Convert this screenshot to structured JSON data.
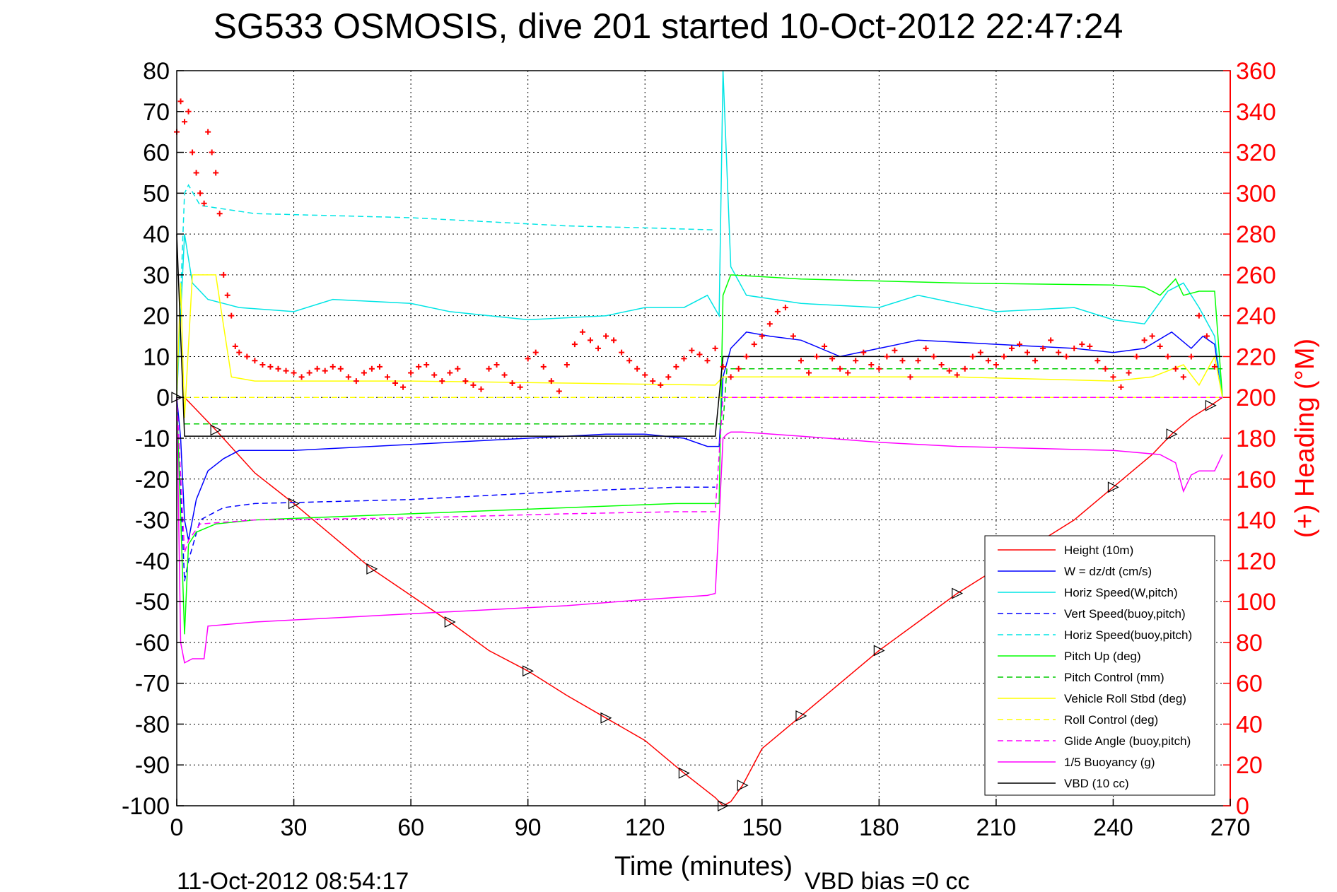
{
  "chart_data": {
    "type": "line",
    "title": "SG533 OSMOSIS, dive 201 started 10-Oct-2012 22:47:24",
    "xlabel": "Time (minutes)",
    "ylabel": "",
    "y2label": "(+) Heading (°M)",
    "xlim": [
      0,
      270
    ],
    "ylim": [
      -100,
      80
    ],
    "y2lim": [
      0,
      360
    ],
    "xticks": [
      "0",
      "30",
      "60",
      "90",
      "120",
      "150",
      "180",
      "210",
      "240",
      "270"
    ],
    "yticks": [
      "80",
      "70",
      "60",
      "50",
      "40",
      "30",
      "20",
      "10",
      "0",
      "-10",
      "-20",
      "-30",
      "-40",
      "-50",
      "-60",
      "-70",
      "-80",
      "-90",
      "-100"
    ],
    "y2ticks": [
      "360",
      "340",
      "320",
      "300",
      "280",
      "260",
      "240",
      "220",
      "200",
      "180",
      "160",
      "140",
      "120",
      "100",
      "80",
      "60",
      "40",
      "20",
      "0"
    ],
    "grid": true,
    "legend_position": "bottom-right",
    "footer_left": "11-Oct-2012 08:54:17",
    "footer_right": "VBD bias =0 cc",
    "series": [
      {
        "name": "Height (10m)",
        "color": "#ff0000",
        "style": "solid",
        "x": [
          0,
          2,
          10,
          20,
          30,
          40,
          50,
          60,
          70,
          80,
          90,
          100,
          110,
          120,
          130,
          138,
          140,
          142,
          145,
          150,
          160,
          170,
          180,
          190,
          200,
          210,
          220,
          230,
          240,
          250,
          255,
          260,
          265,
          268
        ],
        "y": [
          0,
          0,
          -8,
          -18.5,
          -26,
          -34,
          -42,
          -48.5,
          -55,
          -62,
          -67,
          -73,
          -78.5,
          -84,
          -92,
          -98,
          -100,
          -99,
          -95,
          -86,
          -78,
          -70,
          -62,
          -55,
          -48,
          -42,
          -36,
          -30,
          -22,
          -14,
          -9,
          -5,
          -2,
          0
        ]
      },
      {
        "name": "W = dz/dt (cm/s)",
        "color": "#0000ff",
        "style": "solid",
        "x": [
          0,
          1,
          2,
          3,
          5,
          8,
          12,
          16,
          30,
          50,
          70,
          90,
          110,
          120,
          130,
          136,
          139,
          140,
          142,
          146,
          152,
          160,
          170,
          180,
          190,
          210,
          230,
          240,
          248,
          255,
          260,
          263,
          266,
          268
        ],
        "y": [
          0,
          -10,
          -30,
          -35,
          -25,
          -18,
          -15,
          -13,
          -13,
          -12,
          -11,
          -10,
          -9,
          -9,
          -10,
          -12,
          -12,
          5,
          12,
          16,
          15,
          14,
          10,
          12,
          14,
          13,
          12,
          11,
          12,
          16,
          12,
          15,
          13,
          0
        ]
      },
      {
        "name": "Horiz Speed(W,pitch)",
        "color": "#00e5e5",
        "style": "solid",
        "x": [
          0,
          2,
          4,
          8,
          12,
          16,
          30,
          40,
          60,
          70,
          90,
          110,
          120,
          130,
          136,
          139,
          140,
          142,
          146,
          160,
          180,
          190,
          210,
          230,
          240,
          248,
          254,
          258,
          262,
          266,
          268
        ],
        "y": [
          0,
          40,
          28,
          24,
          23,
          22,
          21,
          24,
          23,
          21,
          19,
          20,
          22,
          22,
          25,
          20,
          80,
          32,
          25,
          23,
          22,
          25,
          21,
          22,
          19,
          18,
          26,
          28,
          22,
          15,
          0
        ]
      },
      {
        "name": "Vert Speed(buoy,pitch)",
        "color": "#0000ff",
        "style": "dashed",
        "x": [
          0,
          2,
          3,
          6,
          12,
          20,
          60,
          100,
          128,
          138
        ],
        "y": [
          0,
          -45,
          -40,
          -30,
          -27,
          -26,
          -25,
          -23,
          -22,
          -22
        ]
      },
      {
        "name": "Horiz Speed(buoy,pitch)",
        "color": "#00e5e5",
        "style": "dashed",
        "x": [
          0,
          2,
          3,
          6,
          20,
          40,
          60,
          80,
          100,
          120,
          138
        ],
        "y": [
          0,
          50,
          52,
          47,
          45,
          44.5,
          44,
          43,
          42,
          41.5,
          41
        ]
      },
      {
        "name": "Pitch Up (deg)",
        "color": "#00ff00",
        "style": "solid",
        "x": [
          0,
          2,
          3,
          5,
          10,
          20,
          60,
          100,
          128,
          138,
          139,
          140,
          142,
          160,
          200,
          240,
          248,
          252,
          256,
          258,
          262,
          266,
          268
        ],
        "y": [
          0,
          -58,
          -36,
          -33,
          -31,
          -30,
          -28.5,
          -27,
          -26,
          -26,
          -26,
          25,
          30,
          29,
          28,
          27.5,
          27,
          25,
          29,
          25,
          26,
          26,
          0
        ]
      },
      {
        "name": "Pitch Control (mm)",
        "color": "#00cc00",
        "style": "dashed",
        "x": [
          2,
          140,
          141,
          268
        ],
        "y": [
          -6.5,
          -6.5,
          7,
          7
        ]
      },
      {
        "name": "Vehicle Roll Stbd (deg)",
        "color": "#ffff00",
        "style": "solid",
        "x": [
          0,
          1,
          2,
          4,
          10,
          14,
          20,
          60,
          100,
          138,
          140,
          150,
          200,
          240,
          250,
          258,
          262,
          266,
          268
        ],
        "y": [
          0,
          28,
          -5,
          30,
          30,
          5,
          4,
          4,
          3.5,
          3,
          5,
          5,
          5,
          4,
          5,
          8,
          3,
          10,
          0
        ]
      },
      {
        "name": "Roll Control (deg)",
        "color": "#ffff00",
        "style": "dashed",
        "x": [
          2,
          140,
          142,
          268
        ],
        "y": [
          0,
          0,
          0,
          0
        ]
      },
      {
        "name": "Glide Angle (buoy,pitch)",
        "color": "#ff00ff",
        "style": "dashed",
        "x": [
          0,
          2,
          3,
          6,
          20,
          60,
          100,
          128,
          138,
          140,
          142,
          268
        ],
        "y": [
          0,
          -38,
          -35,
          -31,
          -30,
          -29.5,
          -28.5,
          -28,
          -28,
          0,
          0,
          0
        ]
      },
      {
        "name": "1/5 Buoyancy (g)",
        "color": "#ff00ff",
        "style": "solid",
        "x": [
          0,
          1,
          2,
          4,
          7,
          8,
          20,
          60,
          100,
          120,
          136,
          138,
          139,
          140,
          141,
          142,
          145,
          160,
          180,
          200,
          220,
          240,
          252,
          256,
          258,
          260,
          262,
          266,
          268
        ],
        "y": [
          0,
          -60,
          -65,
          -64,
          -64,
          -56,
          -55,
          -53,
          -51,
          -49.5,
          -48.5,
          -48,
          -30,
          -10,
          -9,
          -8.5,
          -8.5,
          -9.5,
          -11,
          -12,
          -12.5,
          -13,
          -14,
          -16,
          -23,
          -19,
          -18,
          -18,
          -14
        ]
      },
      {
        "name": "VBD (10 cc)",
        "color": "#000000",
        "style": "solid",
        "x": [
          0,
          2,
          138,
          140,
          268
        ],
        "y": [
          40,
          -9.5,
          -9.5,
          10,
          10
        ]
      },
      {
        "name": "Heading",
        "color": "#ff0000",
        "style": "markers",
        "axis": "right",
        "x": [
          0,
          1,
          2,
          3,
          4,
          5,
          6,
          7,
          8,
          9,
          10,
          11,
          12,
          13,
          14,
          15,
          16,
          18,
          20,
          22,
          24,
          26,
          28,
          30,
          32,
          34,
          36,
          38,
          40,
          42,
          44,
          46,
          48,
          50,
          52,
          54,
          56,
          58,
          60,
          62,
          64,
          66,
          68,
          70,
          72,
          74,
          76,
          78,
          80,
          82,
          84,
          86,
          88,
          90,
          92,
          94,
          96,
          98,
          100,
          102,
          104,
          106,
          108,
          110,
          112,
          114,
          116,
          118,
          120,
          122,
          124,
          126,
          128,
          130,
          132,
          134,
          136,
          138,
          140,
          142,
          144,
          146,
          148,
          150,
          152,
          154,
          156,
          158,
          160,
          162,
          164,
          166,
          168,
          170,
          172,
          174,
          176,
          178,
          180,
          182,
          184,
          186,
          188,
          190,
          192,
          194,
          196,
          198,
          200,
          202,
          204,
          206,
          208,
          210,
          212,
          214,
          216,
          218,
          220,
          222,
          224,
          226,
          228,
          230,
          232,
          234,
          236,
          238,
          240,
          242,
          244,
          246,
          248,
          250,
          252,
          254,
          256,
          258,
          260,
          262,
          264,
          266
        ],
        "y": [
          330,
          345,
          335,
          340,
          320,
          310,
          300,
          295,
          330,
          320,
          310,
          290,
          260,
          250,
          240,
          225,
          222,
          220,
          218,
          216,
          215,
          214,
          213,
          212,
          210,
          212,
          214,
          213,
          215,
          214,
          210,
          208,
          212,
          214,
          215,
          210,
          207,
          205,
          212,
          215,
          216,
          211,
          208,
          212,
          214,
          208,
          206,
          204,
          214,
          216,
          211,
          207,
          205,
          219,
          222,
          215,
          208,
          203,
          216,
          226,
          232,
          228,
          224,
          230,
          228,
          222,
          218,
          214,
          211,
          208,
          206,
          210,
          215,
          219,
          223,
          221,
          218,
          224,
          215,
          210,
          214,
          220,
          226,
          230,
          236,
          242,
          244,
          230,
          218,
          212,
          220,
          225,
          219,
          214,
          212,
          218,
          222,
          216,
          214,
          220,
          223,
          218,
          210,
          218,
          224,
          220,
          216,
          213,
          211,
          214,
          220,
          222,
          218,
          216,
          220,
          224,
          226,
          222,
          218,
          224,
          228,
          222,
          220,
          224,
          226,
          225,
          218,
          214,
          210,
          205,
          212,
          220,
          228,
          230,
          225,
          220,
          214,
          210,
          220,
          240,
          230,
          215
        ]
      }
    ]
  }
}
